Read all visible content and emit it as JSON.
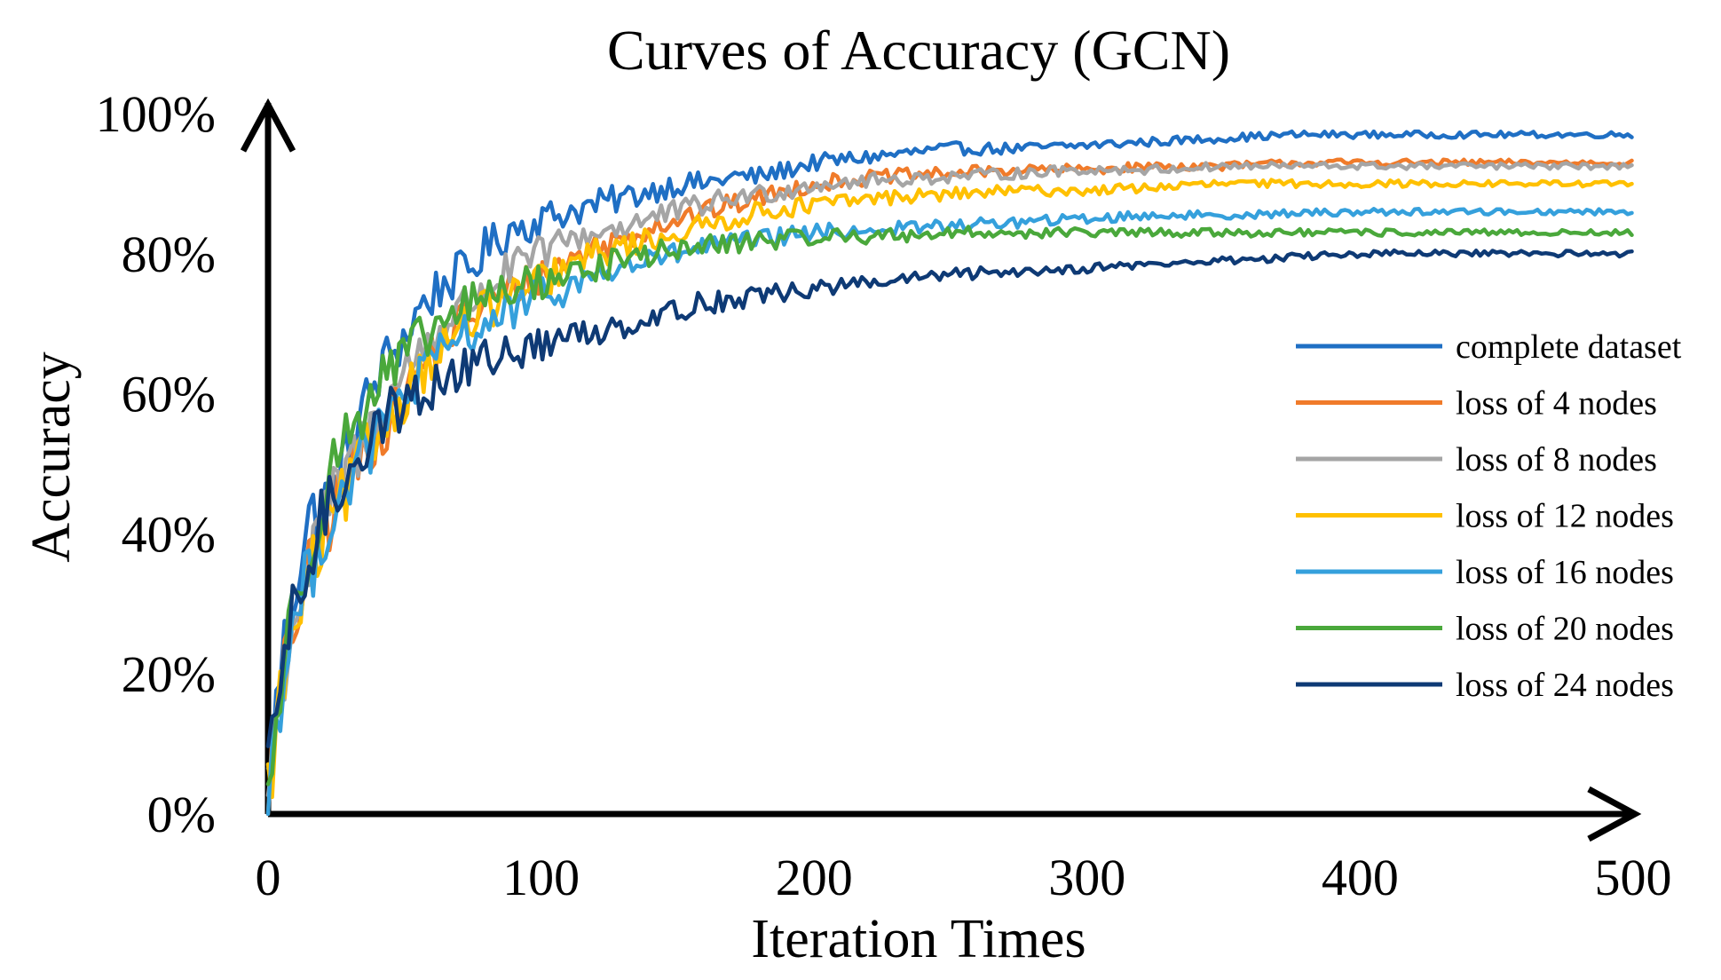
{
  "chart_data": {
    "type": "line",
    "title": "Curves of Accuracy (GCN)",
    "xlabel": "Iteration Times",
    "ylabel": "Accuracy",
    "xlim": [
      0,
      500
    ],
    "ylim": [
      0,
      100
    ],
    "xticks": [
      "0",
      "100",
      "200",
      "300",
      "400",
      "500"
    ],
    "yticks": [
      "0%",
      "20%",
      "40%",
      "60%",
      "80%",
      "100%"
    ],
    "grid": false,
    "legend_position": "right",
    "series": [
      {
        "name": "complete dataset",
        "color": "#1f6fc4",
        "points": [
          [
            0,
            4
          ],
          [
            5,
            22
          ],
          [
            10,
            33
          ],
          [
            15,
            42
          ],
          [
            20,
            44
          ],
          [
            25,
            47
          ],
          [
            30,
            52
          ],
          [
            35,
            58
          ],
          [
            40,
            62
          ],
          [
            45,
            66
          ],
          [
            50,
            68
          ],
          [
            55,
            72
          ],
          [
            60,
            74
          ],
          [
            65,
            76
          ],
          [
            70,
            77
          ],
          [
            75,
            78
          ],
          [
            80,
            81
          ],
          [
            85,
            82
          ],
          [
            90,
            84
          ],
          [
            95,
            84
          ],
          [
            100,
            85
          ],
          [
            110,
            86
          ],
          [
            120,
            87
          ],
          [
            130,
            88
          ],
          [
            140,
            89
          ],
          [
            150,
            90
          ],
          [
            160,
            90
          ],
          [
            170,
            91
          ],
          [
            180,
            91
          ],
          [
            190,
            92
          ],
          [
            200,
            93
          ],
          [
            225,
            94
          ],
          [
            250,
            95
          ],
          [
            275,
            95
          ],
          [
            300,
            95.5
          ],
          [
            325,
            96
          ],
          [
            350,
            96.5
          ],
          [
            375,
            97
          ],
          [
            400,
            97
          ],
          [
            425,
            97
          ],
          [
            450,
            97
          ],
          [
            475,
            97
          ],
          [
            500,
            97
          ]
        ]
      },
      {
        "name": "loss of 4 nodes",
        "color": "#f07b2a",
        "points": [
          [
            0,
            3
          ],
          [
            5,
            18
          ],
          [
            10,
            28
          ],
          [
            15,
            34
          ],
          [
            20,
            40
          ],
          [
            25,
            44
          ],
          [
            30,
            48
          ],
          [
            35,
            51
          ],
          [
            40,
            54
          ],
          [
            45,
            57
          ],
          [
            50,
            60
          ],
          [
            55,
            63
          ],
          [
            60,
            66
          ],
          [
            65,
            68
          ],
          [
            70,
            70
          ],
          [
            80,
            73
          ],
          [
            90,
            75
          ],
          [
            100,
            77
          ],
          [
            110,
            79
          ],
          [
            120,
            81
          ],
          [
            130,
            82
          ],
          [
            140,
            84
          ],
          [
            150,
            85
          ],
          [
            160,
            86
          ],
          [
            170,
            87
          ],
          [
            180,
            88
          ],
          [
            190,
            89
          ],
          [
            200,
            90
          ],
          [
            225,
            91
          ],
          [
            250,
            91.5
          ],
          [
            275,
            92
          ],
          [
            300,
            92
          ],
          [
            325,
            92.5
          ],
          [
            350,
            92.5
          ],
          [
            375,
            93
          ],
          [
            400,
            93
          ],
          [
            450,
            93
          ],
          [
            500,
            93
          ]
        ]
      },
      {
        "name": "loss of 8 nodes",
        "color": "#a5a5a5",
        "points": [
          [
            0,
            3
          ],
          [
            5,
            19
          ],
          [
            10,
            29
          ],
          [
            15,
            35
          ],
          [
            20,
            41
          ],
          [
            25,
            46
          ],
          [
            30,
            50
          ],
          [
            35,
            53
          ],
          [
            40,
            57
          ],
          [
            45,
            60
          ],
          [
            50,
            63
          ],
          [
            55,
            66
          ],
          [
            60,
            68
          ],
          [
            65,
            70
          ],
          [
            70,
            72
          ],
          [
            80,
            75
          ],
          [
            90,
            78
          ],
          [
            100,
            80
          ],
          [
            110,
            82
          ],
          [
            120,
            83
          ],
          [
            130,
            84
          ],
          [
            140,
            85
          ],
          [
            150,
            86
          ],
          [
            160,
            87
          ],
          [
            170,
            88
          ],
          [
            180,
            88.5
          ],
          [
            190,
            89
          ],
          [
            200,
            90
          ],
          [
            225,
            90.5
          ],
          [
            250,
            91
          ],
          [
            275,
            91.5
          ],
          [
            300,
            92
          ],
          [
            325,
            92
          ],
          [
            350,
            92.5
          ],
          [
            400,
            92.5
          ],
          [
            450,
            92.5
          ],
          [
            500,
            92.5
          ]
        ]
      },
      {
        "name": "loss of 12 nodes",
        "color": "#ffc000",
        "points": [
          [
            0,
            3
          ],
          [
            5,
            18
          ],
          [
            10,
            27
          ],
          [
            15,
            33
          ],
          [
            20,
            39
          ],
          [
            25,
            43
          ],
          [
            30,
            47
          ],
          [
            35,
            51
          ],
          [
            40,
            54
          ],
          [
            45,
            57
          ],
          [
            50,
            60
          ],
          [
            55,
            63
          ],
          [
            60,
            65
          ],
          [
            65,
            67
          ],
          [
            70,
            69
          ],
          [
            80,
            72
          ],
          [
            90,
            74
          ],
          [
            100,
            76
          ],
          [
            110,
            78
          ],
          [
            120,
            80
          ],
          [
            130,
            81
          ],
          [
            140,
            82
          ],
          [
            150,
            83
          ],
          [
            160,
            84
          ],
          [
            170,
            85
          ],
          [
            180,
            86
          ],
          [
            190,
            86.5
          ],
          [
            200,
            87
          ],
          [
            225,
            88
          ],
          [
            250,
            88.5
          ],
          [
            275,
            89
          ],
          [
            300,
            89
          ],
          [
            325,
            89.5
          ],
          [
            350,
            90
          ],
          [
            400,
            90
          ],
          [
            450,
            90
          ],
          [
            500,
            90
          ]
        ]
      },
      {
        "name": "loss of 16 nodes",
        "color": "#35a0dc",
        "points": [
          [
            0,
            3
          ],
          [
            5,
            19
          ],
          [
            10,
            28
          ],
          [
            15,
            34
          ],
          [
            20,
            40
          ],
          [
            25,
            44
          ],
          [
            30,
            48
          ],
          [
            35,
            51
          ],
          [
            40,
            54
          ],
          [
            45,
            57
          ],
          [
            50,
            60
          ],
          [
            55,
            62
          ],
          [
            60,
            64
          ],
          [
            65,
            66
          ],
          [
            70,
            68
          ],
          [
            80,
            70
          ],
          [
            90,
            72
          ],
          [
            100,
            74
          ],
          [
            110,
            75
          ],
          [
            120,
            77
          ],
          [
            130,
            78
          ],
          [
            140,
            79
          ],
          [
            150,
            80
          ],
          [
            160,
            81
          ],
          [
            170,
            81.5
          ],
          [
            180,
            82
          ],
          [
            190,
            82.5
          ],
          [
            200,
            83
          ],
          [
            225,
            83.5
          ],
          [
            250,
            84
          ],
          [
            275,
            84.5
          ],
          [
            300,
            85
          ],
          [
            325,
            85.5
          ],
          [
            350,
            85.5
          ],
          [
            400,
            86
          ],
          [
            450,
            86
          ],
          [
            500,
            86
          ]
        ]
      },
      {
        "name": "loss of 20 nodes",
        "color": "#4aa83b",
        "points": [
          [
            0,
            3
          ],
          [
            5,
            20
          ],
          [
            10,
            30
          ],
          [
            15,
            38
          ],
          [
            20,
            46
          ],
          [
            25,
            51
          ],
          [
            30,
            55
          ],
          [
            35,
            58
          ],
          [
            40,
            61
          ],
          [
            45,
            63
          ],
          [
            50,
            65
          ],
          [
            55,
            67
          ],
          [
            60,
            69
          ],
          [
            65,
            70
          ],
          [
            70,
            72
          ],
          [
            80,
            74
          ],
          [
            90,
            75
          ],
          [
            100,
            76
          ],
          [
            110,
            77
          ],
          [
            120,
            78
          ],
          [
            130,
            79
          ],
          [
            140,
            80
          ],
          [
            150,
            80.5
          ],
          [
            160,
            81
          ],
          [
            170,
            81.5
          ],
          [
            180,
            82
          ],
          [
            190,
            82
          ],
          [
            200,
            82.5
          ],
          [
            225,
            82.5
          ],
          [
            250,
            83
          ],
          [
            275,
            83
          ],
          [
            300,
            83
          ],
          [
            350,
            83
          ],
          [
            400,
            83
          ],
          [
            450,
            83
          ],
          [
            500,
            83
          ]
        ]
      },
      {
        "name": "loss of 24 nodes",
        "color": "#0e3a75",
        "points": [
          [
            0,
            4
          ],
          [
            5,
            21
          ],
          [
            10,
            29
          ],
          [
            15,
            36
          ],
          [
            20,
            42
          ],
          [
            25,
            46
          ],
          [
            30,
            50
          ],
          [
            35,
            53
          ],
          [
            40,
            55
          ],
          [
            45,
            57
          ],
          [
            50,
            59
          ],
          [
            55,
            60
          ],
          [
            60,
            61
          ],
          [
            65,
            62
          ],
          [
            70,
            63
          ],
          [
            80,
            65
          ],
          [
            90,
            66
          ],
          [
            100,
            67
          ],
          [
            110,
            68
          ],
          [
            120,
            69
          ],
          [
            130,
            70
          ],
          [
            140,
            71
          ],
          [
            150,
            72
          ],
          [
            160,
            73
          ],
          [
            170,
            73.5
          ],
          [
            180,
            74
          ],
          [
            190,
            74.5
          ],
          [
            200,
            75
          ],
          [
            225,
            76
          ],
          [
            250,
            77
          ],
          [
            275,
            77.5
          ],
          [
            300,
            78
          ],
          [
            325,
            78.5
          ],
          [
            350,
            79
          ],
          [
            375,
            79.5
          ],
          [
            400,
            80
          ],
          [
            450,
            80
          ],
          [
            500,
            80
          ]
        ]
      }
    ]
  }
}
